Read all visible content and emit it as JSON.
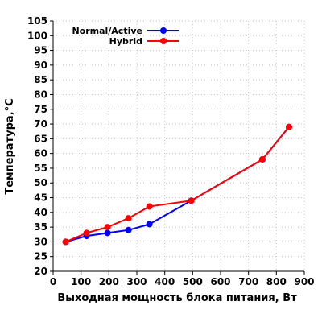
{
  "chart_data": {
    "type": "line",
    "title": "",
    "xlabel": "Выходная мощность блока питания, Вт",
    "ylabel": "Температура,°C",
    "xlim": [
      0,
      900
    ],
    "ylim": [
      20,
      105
    ],
    "xticks": [
      0,
      100,
      200,
      300,
      400,
      500,
      600,
      700,
      800,
      900
    ],
    "yticks": [
      20,
      25,
      30,
      35,
      40,
      45,
      50,
      55,
      60,
      65,
      70,
      75,
      80,
      85,
      90,
      95,
      100,
      105
    ],
    "grid": true,
    "legend_position": "top-left",
    "series": [
      {
        "name": "Normal/Active",
        "color": "#0000ff",
        "x": [
          45,
          120,
          195,
          270,
          345,
          495,
          750,
          845
        ],
        "y": [
          30,
          32,
          33,
          34,
          36,
          44,
          58,
          69
        ]
      },
      {
        "name": "Hybrid",
        "color": "#ff0000",
        "x": [
          45,
          120,
          195,
          270,
          345,
          495,
          750,
          845
        ],
        "y": [
          30,
          33,
          35,
          38,
          42,
          44,
          58,
          69
        ]
      }
    ]
  }
}
